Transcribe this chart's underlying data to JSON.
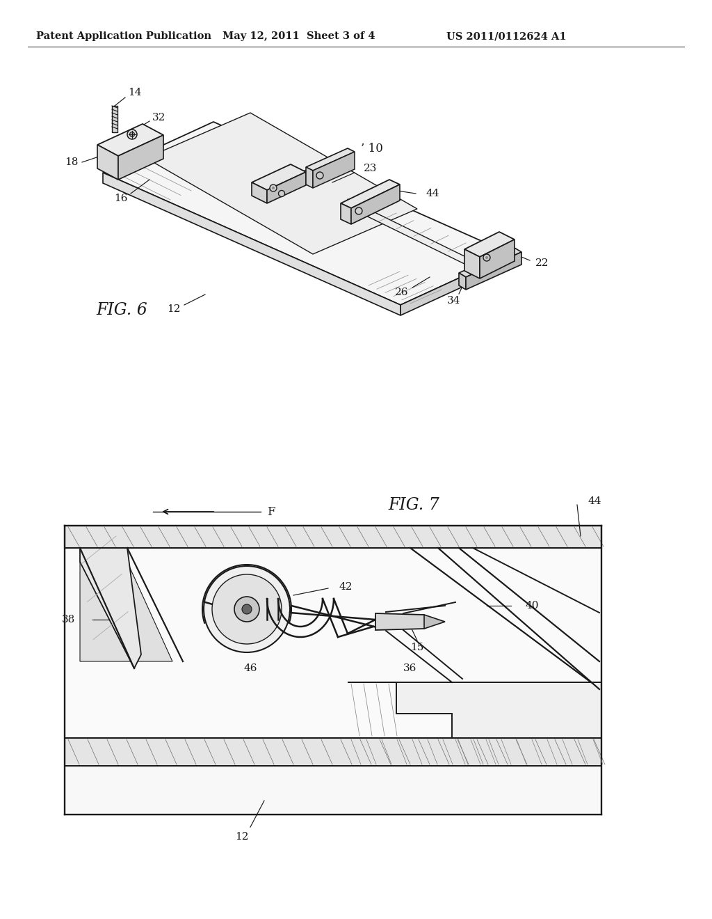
{
  "bg_color": "#ffffff",
  "header_text1": "Patent Application Publication",
  "header_text2": "May 12, 2011  Sheet 3 of 4",
  "header_text3": "US 2011/0112624 A1",
  "line_color": "#1a1a1a",
  "fig6_label": "FIG. 6",
  "fig7_label": "FIG. 7",
  "fig6_bounds": [
    100,
    100,
    800,
    530
  ],
  "fig7_bounds": [
    90,
    700,
    870,
    1270
  ]
}
